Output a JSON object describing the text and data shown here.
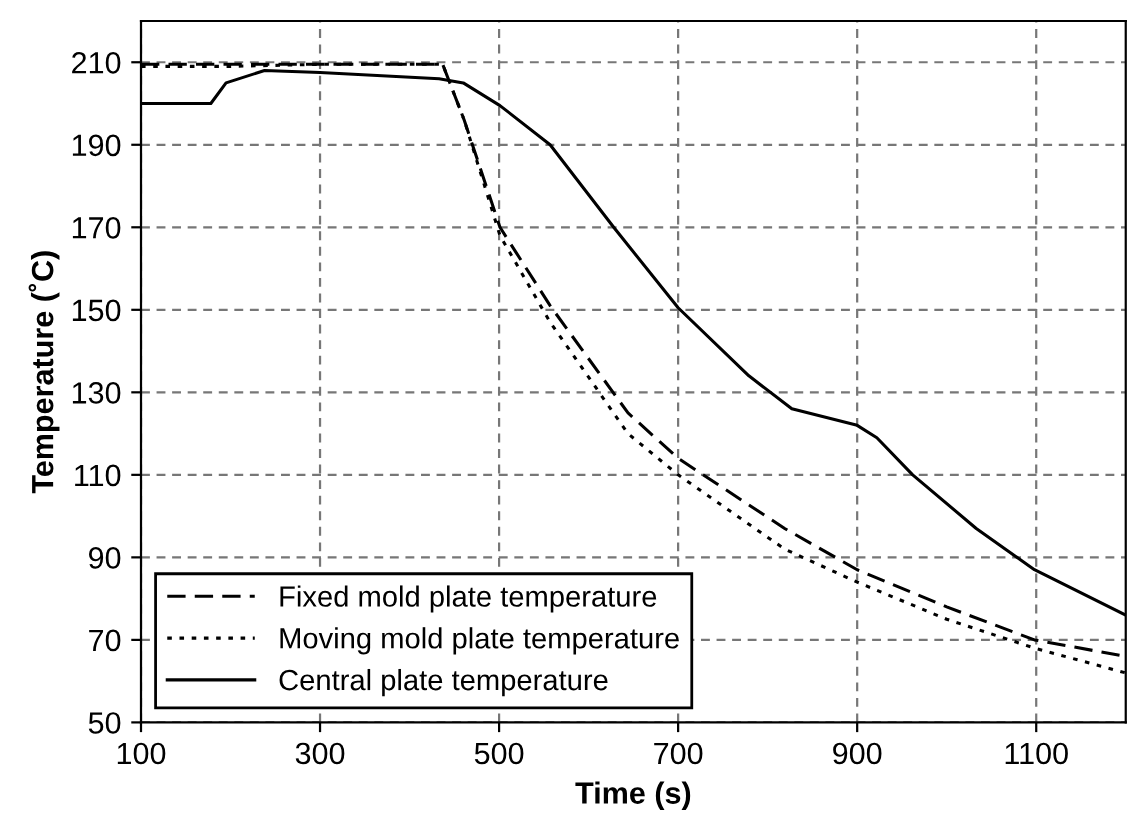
{
  "chart_data": {
    "type": "line",
    "xlabel": "Time (s)",
    "ylabel": "Temperature (˚C)",
    "xlim": [
      100,
      1200
    ],
    "xticks": [
      100,
      300,
      500,
      700,
      900,
      1100
    ],
    "ylim": [
      50,
      220
    ],
    "yticks": [
      50,
      70,
      90,
      110,
      130,
      150,
      170,
      190,
      210
    ],
    "grid": true,
    "legend": "bottom left",
    "series": [
      {
        "name": "Fixed mold plate temperature",
        "color": "#000000",
        "line_style": "dashed",
        "x": [
          100,
          200,
          300,
          437,
          461,
          501,
          557,
          644,
          700,
          819,
          900,
          1000,
          1098,
          1200
        ],
        "values": [
          209.5,
          209.5,
          209.5,
          209.5,
          196,
          170,
          151,
          125,
          114,
          97,
          87,
          78,
          70,
          66
        ]
      },
      {
        "name": "Moving mold plate temperature",
        "color": "#000000",
        "line_style": "dotted",
        "x": [
          100,
          200,
          300,
          437,
          461,
          501,
          557,
          644,
          700,
          819,
          900,
          1000,
          1098,
          1200
        ],
        "values": [
          209,
          209,
          209.5,
          209.5,
          196,
          168,
          147,
          120,
          110,
          92,
          84,
          75,
          68,
          62
        ]
      },
      {
        "name": "Central plate temperature",
        "color": "#000000",
        "line_style": "solid",
        "x": [
          100,
          178,
          195,
          238,
          300,
          433,
          460,
          501,
          557,
          628,
          700,
          779,
          827,
          900,
          922,
          962,
          1033,
          1098,
          1200
        ],
        "values": [
          200,
          200,
          205,
          208,
          207.5,
          206,
          205,
          199.5,
          190,
          170,
          150.5,
          134,
          126,
          122,
          119,
          110,
          97,
          87,
          76
        ]
      }
    ]
  }
}
